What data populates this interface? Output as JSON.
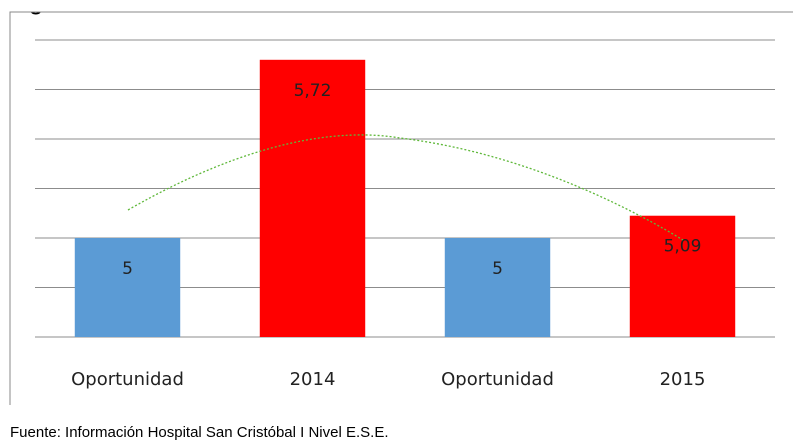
{
  "header": {
    "text": "siguiente."
  },
  "chart_data": {
    "type": "bar",
    "categories": [
      "Oportunidad",
      "2014",
      "Oportunidad",
      "2015"
    ],
    "values": [
      5,
      5.72,
      5,
      5.09
    ],
    "value_labels": [
      "5",
      "5,72",
      "5",
      "5,09"
    ],
    "colors": [
      "#5b9bd5",
      "#ff0000",
      "#5b9bd5",
      "#ff0000"
    ],
    "ylim": [
      4.6,
      5.8
    ],
    "yticks": [
      4.6,
      4.8,
      5.0,
      5.2,
      5.4,
      5.6,
      5.8
    ],
    "grid": true
  },
  "footer": {
    "source": "Fuente: Información Hospital San Cristóbal I Nivel E.S.E."
  }
}
